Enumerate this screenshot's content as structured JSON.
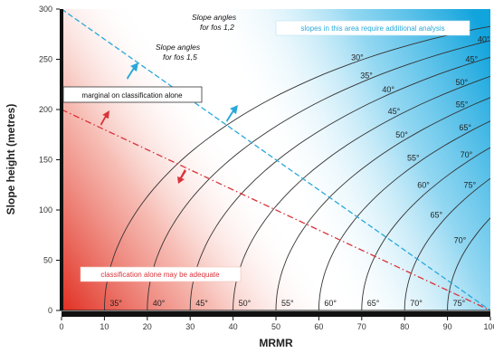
{
  "chart_data": {
    "type": "line",
    "xlabel": "MRMR",
    "ylabel": "Slope height (metres)",
    "xlim": [
      0,
      100
    ],
    "ylim": [
      0,
      300
    ],
    "x_ticks": [
      "0",
      "10",
      "20",
      "30",
      "40",
      "50",
      "60",
      "70",
      "80",
      "90",
      "100"
    ],
    "y_ticks": [
      "0",
      "50",
      "100",
      "150",
      "200",
      "250",
      "300"
    ],
    "boundary_lines": [
      {
        "kind": "dashed",
        "color": "#29a8d9",
        "points": [
          [
            0,
            300
          ],
          [
            100,
            0
          ]
        ]
      },
      {
        "kind": "dash-dot",
        "color": "#d9333a",
        "points": [
          [
            0,
            200
          ],
          [
            100,
            0
          ]
        ]
      }
    ],
    "contours": [
      {
        "bottom_label": "35°",
        "fos12_label": "35°",
        "fos15_label": "30°",
        "x_base": 10,
        "fos12_at_y": 292,
        "fos15_at_y": 252
      },
      {
        "bottom_label": "40°",
        "fos12_label": "40°",
        "fos15_label": "35°",
        "x_base": 20,
        "fos12_at_y": 270,
        "fos15_at_y": 234
      },
      {
        "bottom_label": "45°",
        "fos12_label": "45°",
        "fos15_label": "40°",
        "x_base": 30,
        "fos12_at_y": 250,
        "fos15_at_y": 220
      },
      {
        "bottom_label": "50°",
        "fos12_label": "50°",
        "fos15_label": "45°",
        "x_base": 40,
        "fos12_at_y": 227,
        "fos15_at_y": 198
      },
      {
        "bottom_label": "55°",
        "fos12_label": "55°",
        "fos15_label": "50°",
        "x_base": 50,
        "fos12_at_y": 205,
        "fos15_at_y": 175
      },
      {
        "bottom_label": "60°",
        "fos12_label": "65°",
        "fos15_label": "55°",
        "x_base": 60,
        "fos12_at_y": 182,
        "fos15_at_y": 152
      },
      {
        "bottom_label": "65°",
        "fos12_label": "70°",
        "fos15_label": "60°",
        "x_base": 70,
        "fos12_at_y": 155,
        "fos15_at_y": 125
      },
      {
        "bottom_label": "70°",
        "fos12_label": "75°",
        "fos15_label": "65°",
        "x_base": 80,
        "fos12_at_y": 125,
        "fos15_at_y": 95
      },
      {
        "bottom_label": "75°",
        "fos12_label": "",
        "fos15_label": "70°",
        "x_base": 90,
        "fos12_at_y": 0,
        "fos15_at_y": 70
      }
    ],
    "annotations": {
      "fos12_title_1": "Slope angles",
      "fos12_title_2": "for fos 1,2",
      "fos15_title_1": "Slope angles",
      "fos15_title_2": "for fos 1,5",
      "upper_zone": "slopes in this area require additional analysis",
      "middle_zone": "marginal on classification alone",
      "lower_zone": "classification alone may be adequate"
    },
    "colors": {
      "upper_zone": "#29a8d9",
      "lower_zone": "#e03a2e",
      "upper_text": "#29a8d9",
      "lower_text": "#d9333a"
    },
    "grid": false,
    "legend": "none"
  }
}
